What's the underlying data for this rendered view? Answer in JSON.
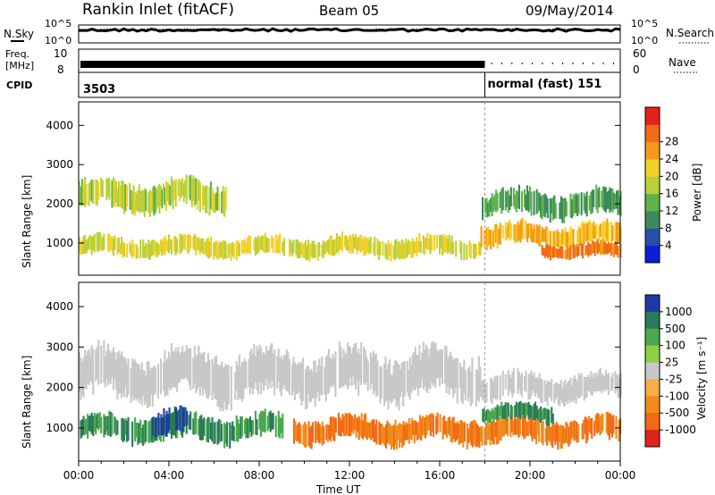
{
  "header": {
    "station": "Rankin Inlet (fitACF)",
    "beam": "Beam 05",
    "date": "09/May/2014"
  },
  "chart_data": [
    {
      "type": "line",
      "name": "noise-panel",
      "left_label": "N.Sky",
      "right_label": "N.Search",
      "left_ticks": [
        "10^5",
        "10^0"
      ],
      "right_ticks": [
        "10^5",
        "10^0"
      ],
      "series_sky_level_frac": 0.72,
      "series_search_level_frac": 0.45
    },
    {
      "type": "bar",
      "name": "freq-panel",
      "left_label_lines": [
        "Freq.",
        "[MHz]"
      ],
      "left_ticks": [
        "10",
        "8"
      ],
      "right_label": "Nave",
      "right_ticks": [
        "60",
        "0"
      ],
      "freq_mhz": 10,
      "transition_time_h": 18.0
    },
    {
      "type": "table",
      "name": "cpid-panel",
      "label": "CPID",
      "segments": [
        {
          "start_h": 0.0,
          "text": "3503"
        },
        {
          "start_h": 18.0,
          "text": "normal (fast) 151"
        }
      ]
    },
    {
      "type": "heatmap",
      "name": "power-panel",
      "ylabel": "Slant Range [km]",
      "yticks": [
        1000,
        2000,
        3000,
        4000
      ],
      "ylim": [
        180,
        4600
      ],
      "colorbar_label": "Power [dB]",
      "colorbar_ticks": [
        "4",
        "8",
        "12",
        "16",
        "20",
        "24",
        "28"
      ],
      "colorbar_colors": [
        "#0c1fd8",
        "#2a4fa8",
        "#3d8a5a",
        "#5fb34a",
        "#b9d03a",
        "#f2d12a",
        "#f59a1a",
        "#f26a17",
        "#e0231b"
      ],
      "bands": [
        {
          "t0": 0.0,
          "t1": 17.8,
          "r_center": 900,
          "r_width": 400,
          "value": 18
        },
        {
          "t0": 0.0,
          "t1": 6.5,
          "r_center": 2200,
          "r_width": 600,
          "value": 16
        },
        {
          "t0": 17.8,
          "t1": 24.0,
          "r_center": 1200,
          "r_width": 450,
          "value": 22
        },
        {
          "t0": 17.8,
          "t1": 24.0,
          "r_center": 2000,
          "r_width": 500,
          "value": 10
        },
        {
          "t0": 20.5,
          "t1": 24.0,
          "r_center": 800,
          "r_width": 300,
          "value": 27
        }
      ]
    },
    {
      "type": "heatmap",
      "name": "velocity-panel",
      "ylabel": "Slant Range [km]",
      "yticks": [
        1000,
        2000,
        3000,
        4000
      ],
      "ylim": [
        180,
        4600
      ],
      "colorbar_label": "Velocity [m s⁻¹]",
      "colorbar_ticks": [
        "1000",
        "500",
        "100",
        "25",
        "-25",
        "-100",
        "-500",
        "-1000"
      ],
      "colorbar_colors": [
        "#1f3aa8",
        "#2a7a5a",
        "#4aa84f",
        "#8fcf46",
        "#c8c8c8",
        "#f4ae4a",
        "#f08c1a",
        "#f26a17",
        "#e0231b"
      ],
      "bands": [
        {
          "t0": 0.0,
          "t1": 17.8,
          "r_center": 2300,
          "r_width": 900,
          "value": 0
        },
        {
          "t0": 0.0,
          "t1": 9.0,
          "r_center": 1000,
          "r_width": 500,
          "value": 500
        },
        {
          "t0": 3.2,
          "t1": 4.8,
          "r_center": 1100,
          "r_width": 500,
          "value": 1000
        },
        {
          "t0": 9.5,
          "t1": 24.0,
          "r_center": 950,
          "r_width": 500,
          "value": -500
        },
        {
          "t0": 17.8,
          "t1": 21.0,
          "r_center": 1350,
          "r_width": 350,
          "value": 500
        },
        {
          "t0": 17.8,
          "t1": 24.0,
          "r_center": 2000,
          "r_width": 500,
          "value": 0
        }
      ]
    }
  ],
  "x_axis": {
    "label": "Time UT",
    "ticks": [
      "00:00",
      "04:00",
      "08:00",
      "12:00",
      "16:00",
      "20:00",
      "00:00"
    ],
    "range_h": [
      0,
      24
    ]
  }
}
